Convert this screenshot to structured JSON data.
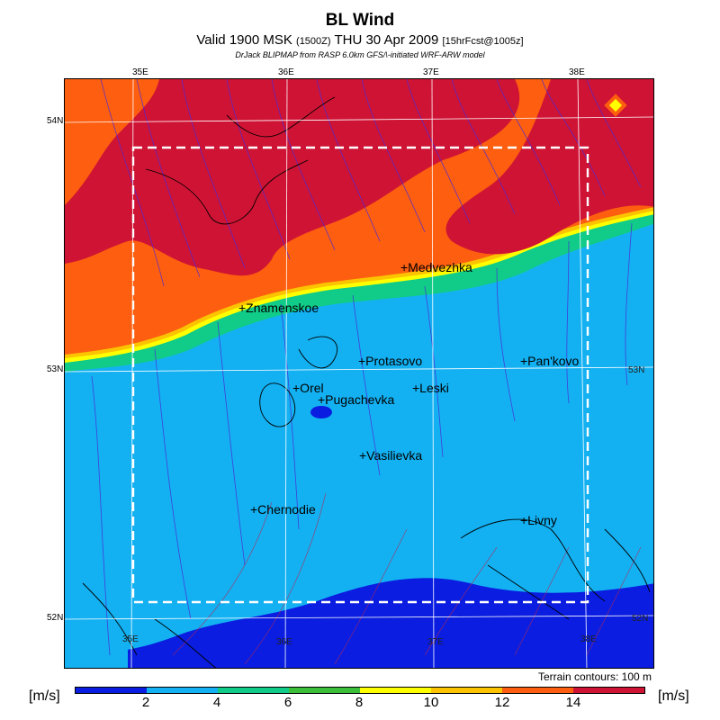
{
  "header": {
    "title": "BL Wind",
    "subtitle_main": "Valid 1900 MSK",
    "subtitle_paren": "(1500Z)",
    "subtitle_date": "THU 30 Apr 2009",
    "subtitle_fcst": "[15hrFcst@1005z]",
    "credit": "DrJack BLIPMAP from RASP 6.0km GFS/\\-initiated WRF-ARW model"
  },
  "map": {
    "lon_labels_top": [
      "35E",
      "36E",
      "37E",
      "38E"
    ],
    "lon_labels_bottom": [
      "35E",
      "36E",
      "37E",
      "38E"
    ],
    "lat_labels_left": [
      "54N",
      "53N",
      "52N"
    ],
    "lat_labels_right": [
      "53N",
      "52N"
    ],
    "places": [
      {
        "name": "+Medvezhka"
      },
      {
        "name": "+Znamenskoe"
      },
      {
        "name": "+Protasovo"
      },
      {
        "name": "+Pan'kovo"
      },
      {
        "name": "+Orel"
      },
      {
        "name": "+Pugachevka"
      },
      {
        "name": "+Leski"
      },
      {
        "name": "+Vasilievka"
      },
      {
        "name": "+Chernodie"
      },
      {
        "name": "+Livny"
      }
    ],
    "terrain_note": "Terrain contours: 100 m"
  },
  "legend": {
    "unit_left": "[m/s]",
    "unit_right": "[m/s]",
    "ticks": [
      "2",
      "4",
      "6",
      "8",
      "10",
      "12",
      "14"
    ],
    "colors": [
      "#0a1de0",
      "#0a1de0",
      "#13b1f2",
      "#13b1f2",
      "#10cc88",
      "#10cc88",
      "#3cbf38",
      "#3cbf38",
      "#ffff00",
      "#ffff00",
      "#fbc300",
      "#fbc300",
      "#fd5e10",
      "#fd5e10",
      "#cf1334",
      "#cf1334"
    ]
  }
}
